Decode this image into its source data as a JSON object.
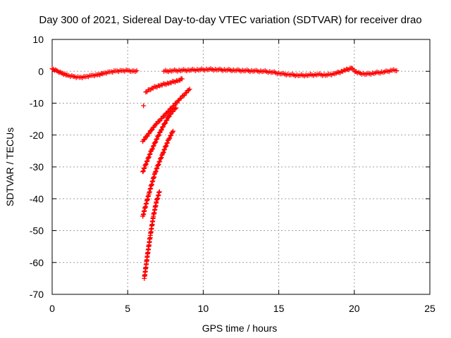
{
  "chart_data": {
    "type": "scatter",
    "title": "Day 300 of 2021, Sidereal Day-to-day VTEC variation (SDTVAR) for receiver drao",
    "xlabel": "GPS time / hours",
    "ylabel": "SDTVAR / TECUs",
    "xlim": [
      0,
      25
    ],
    "ylim": [
      -70,
      10
    ],
    "x_ticks": [
      0,
      5,
      10,
      15,
      20,
      25
    ],
    "y_ticks": [
      10,
      0,
      -10,
      -20,
      -30,
      -40,
      -50,
      -60,
      -70
    ],
    "grid": true,
    "marker": "+",
    "marker_color": "#ff0000",
    "series": [
      {
        "name": "baseline segment 1",
        "x": [
          0.0,
          0.3,
          0.6,
          1.0,
          1.4,
          1.8,
          2.2,
          2.6,
          3.0,
          3.4,
          3.8,
          4.2,
          4.6,
          5.0,
          5.3,
          5.6
        ],
        "y": [
          0.8,
          0.2,
          -0.5,
          -1.2,
          -1.6,
          -1.9,
          -1.7,
          -1.3,
          -1.1,
          -0.6,
          -0.2,
          0.1,
          0.2,
          0.3,
          0.1,
          0.2
        ]
      },
      {
        "name": "baseline segment 2",
        "x": [
          7.4,
          8.0,
          8.6,
          9.2,
          9.8,
          10.4,
          11.0,
          11.6,
          12.2,
          12.8,
          13.4,
          14.0,
          14.6,
          15.2,
          15.8,
          16.4,
          17.0,
          17.6,
          18.2,
          18.8,
          19.4,
          19.8,
          20.2,
          20.8,
          21.4,
          22.0,
          22.5,
          22.8
        ],
        "y": [
          0.0,
          0.2,
          0.3,
          0.4,
          0.5,
          0.6,
          0.5,
          0.4,
          0.3,
          0.2,
          0.1,
          0.0,
          -0.3,
          -0.8,
          -1.1,
          -1.3,
          -1.2,
          -1.0,
          -1.2,
          -0.6,
          0.3,
          1.0,
          -0.5,
          -0.9,
          -0.5,
          -0.2,
          0.3,
          0.2
        ]
      },
      {
        "name": "branch 1",
        "x": [
          6.2,
          6.6,
          7.2,
          7.8,
          8.4,
          8.6
        ],
        "y": [
          -6.5,
          -5.3,
          -4.3,
          -3.6,
          -2.8,
          -2.4
        ]
      },
      {
        "name": "branch 2",
        "x": [
          6.0,
          6.8,
          7.6,
          8.4,
          9.1
        ],
        "y": [
          -22.0,
          -17.0,
          -13.0,
          -9.0,
          -5.6
        ]
      },
      {
        "name": "branch 3",
        "x": [
          6.0,
          6.6,
          7.2,
          7.8,
          8.2
        ],
        "y": [
          -31.5,
          -24.5,
          -18.5,
          -13.5,
          -11.5
        ]
      },
      {
        "name": "branch 4",
        "x": [
          6.0,
          6.4,
          6.8,
          7.3,
          7.7,
          8.0
        ],
        "y": [
          -45.5,
          -38.5,
          -32.0,
          -26.0,
          -21.5,
          -18.8
        ]
      },
      {
        "name": "branch 5",
        "x": [
          6.1,
          6.3,
          6.5,
          6.7,
          6.9,
          7.1
        ],
        "y": [
          -65.0,
          -58.0,
          -51.5,
          -45.5,
          -41.0,
          -37.8
        ]
      },
      {
        "name": "outlier",
        "x": [
          6.05
        ],
        "y": [
          -10.8
        ]
      }
    ]
  }
}
